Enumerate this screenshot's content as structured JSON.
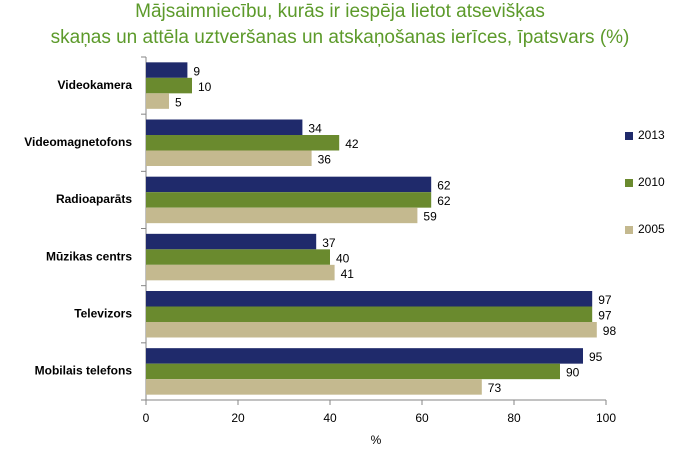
{
  "chart_data": {
    "type": "bar",
    "orientation": "horizontal",
    "title": [
      "Mājsaimniecību, kurās ir iespēja lietot atsevišķas",
      "skaņas un attēla uztveršanas un atskaņošanas ierīces, īpatsvars (%)"
    ],
    "x_label": "%",
    "categories": [
      "Videokamera",
      "Videomagnetofons",
      "Radioaparāts",
      "Mūzikas centrs",
      "Televizors",
      "Mobilais telefons"
    ],
    "series": [
      {
        "name": "2013",
        "color": "#1f2a6b",
        "values": [
          9,
          34,
          62,
          37,
          97,
          95
        ]
      },
      {
        "name": "2010",
        "color": "#6a8a2e",
        "values": [
          10,
          42,
          62,
          40,
          97,
          90
        ]
      },
      {
        "name": "2005",
        "color": "#c4b98f",
        "values": [
          5,
          36,
          59,
          41,
          98,
          73
        ]
      }
    ],
    "xlim": [
      0,
      100
    ],
    "xticks": [
      0,
      20,
      40,
      60,
      80,
      100
    ],
    "grid": false,
    "legend": "right"
  }
}
